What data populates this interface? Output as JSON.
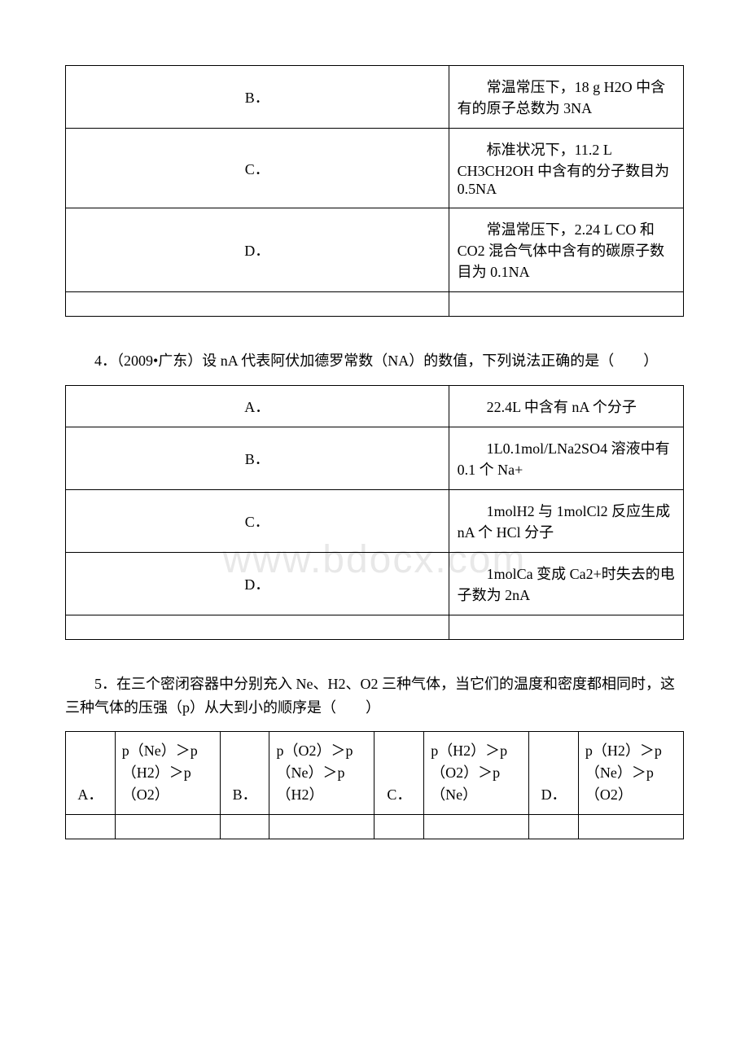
{
  "table1": {
    "rows": [
      {
        "label": "B．",
        "text": "常温常压下，18 g H2O 中含有的原子总数为 3NA"
      },
      {
        "label": "C．",
        "text": "标准状况下，11.2 L CH3CH2OH 中含有的分子数目为 0.5NA"
      },
      {
        "label": "D．",
        "text": "常温常压下，2.24 L CO 和 CO2 混合气体中含有的碳原子数目为 0.1NA"
      }
    ]
  },
  "question4": {
    "text": "4．（2009•广东）设 nA 代表阿伏加德罗常数（NA）的数值，下列说法正确的是（　　）"
  },
  "table2": {
    "rows": [
      {
        "label": "A．",
        "text": "22.4L 中含有 nA 个分子"
      },
      {
        "label": "B．",
        "text": "1L0.1mol/LNa2SO4 溶液中有 0.1 个 Na+"
      },
      {
        "label": "C．",
        "text": "1molH2 与 1molCl2 反应生成 nA 个 HCl 分子"
      },
      {
        "label": "D．",
        "text": "1molCa 变成 Ca2+时失去的电子数为 2nA"
      }
    ]
  },
  "question5": {
    "text": "5．在三个密闭容器中分别充入 Ne、H2、O2 三种气体，当它们的温度和密度都相同时，这三种气体的压强（p）从大到小的顺序是（　　）"
  },
  "table3": {
    "options": [
      {
        "label": "A．",
        "text": "p（Ne）＞p（H2）＞p（O2）"
      },
      {
        "label": "B．",
        "text": "p（O2）＞p（Ne）＞p（H2）"
      },
      {
        "label": "C．",
        "text": "p（H2）＞p（O2）＞p（Ne）"
      },
      {
        "label": "D．",
        "text": "p（H2）＞p（Ne）＞p（O2）"
      }
    ]
  }
}
